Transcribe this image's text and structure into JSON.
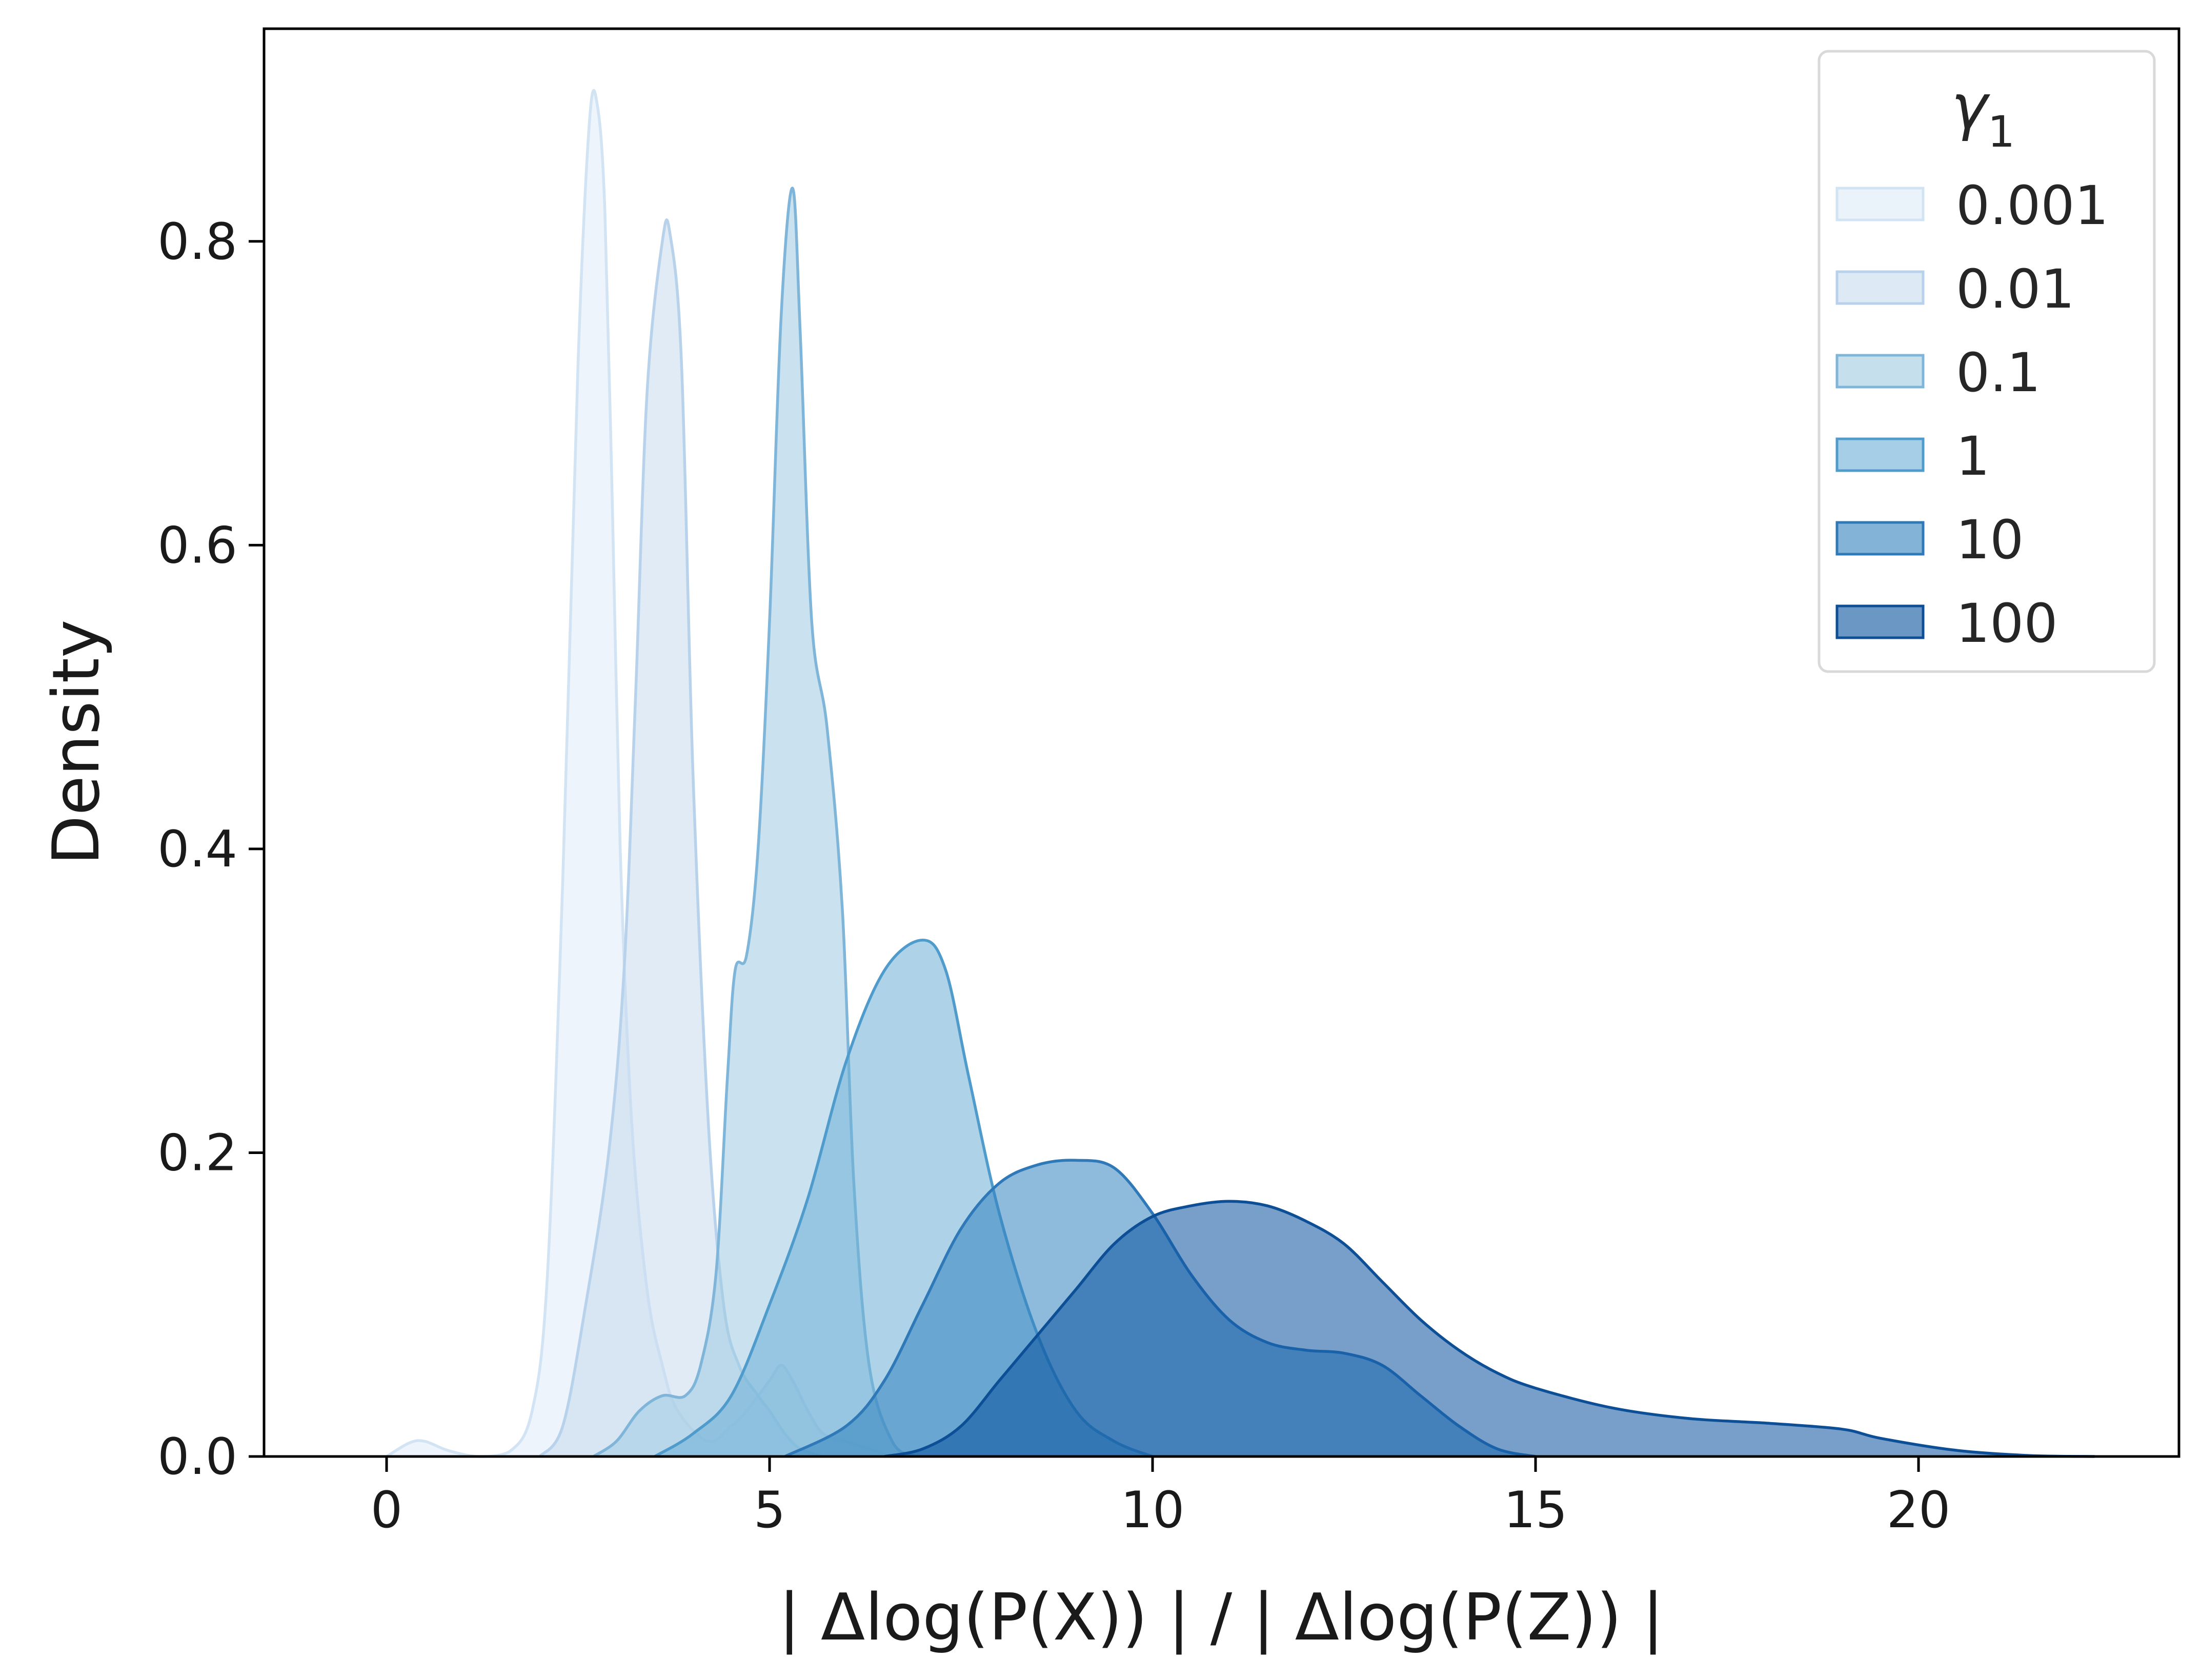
{
  "chart_data": {
    "type": "area",
    "xlabel": "| Δlog(P(X)) | / | Δlog(P(Z)) |",
    "ylabel": "Density",
    "xlim": [
      -1.6,
      23.4
    ],
    "ylim": [
      0,
      0.94
    ],
    "xticks": [
      0,
      5,
      10,
      15,
      20
    ],
    "xtick_labels": [
      "0",
      "5",
      "10",
      "15",
      "20"
    ],
    "yticks": [
      0.0,
      0.2,
      0.4,
      0.6,
      0.8
    ],
    "ytick_labels": [
      "0.0",
      "0.2",
      "0.4",
      "0.6",
      "0.8"
    ],
    "grid": false,
    "legend": {
      "title_symbol": "γ",
      "title_subscript": "1",
      "placement": "top-right"
    },
    "series": [
      {
        "name": "0.001",
        "fill": "#deebf7",
        "stroke": "#d2e3f3",
        "points": [
          [
            0,
            0
          ],
          [
            0.3,
            0.009
          ],
          [
            0.5,
            0.01
          ],
          [
            0.8,
            0.004
          ],
          [
            1.2,
            0.0
          ],
          [
            1.6,
            0.003
          ],
          [
            1.9,
            0.03
          ],
          [
            2.1,
            0.12
          ],
          [
            2.3,
            0.38
          ],
          [
            2.5,
            0.72
          ],
          [
            2.65,
            0.88
          ],
          [
            2.75,
            0.89
          ],
          [
            2.85,
            0.82
          ],
          [
            2.95,
            0.62
          ],
          [
            3.05,
            0.4
          ],
          [
            3.2,
            0.22
          ],
          [
            3.4,
            0.11
          ],
          [
            3.6,
            0.06
          ],
          [
            3.8,
            0.03
          ],
          [
            4.2,
            0.01
          ],
          [
            4.5,
            0.02
          ],
          [
            4.7,
            0.03
          ],
          [
            5.0,
            0.05
          ],
          [
            5.15,
            0.06
          ],
          [
            5.3,
            0.05
          ],
          [
            5.5,
            0.03
          ],
          [
            5.7,
            0.015
          ],
          [
            6.0,
            0.01
          ],
          [
            6.3,
            0.005
          ],
          [
            6.6,
            0.0
          ]
        ]
      },
      {
        "name": "0.01",
        "fill": "#c6dbef",
        "stroke": "#b7d2ea",
        "points": [
          [
            2.0,
            0
          ],
          [
            2.3,
            0.02
          ],
          [
            2.6,
            0.1
          ],
          [
            2.9,
            0.2
          ],
          [
            3.1,
            0.32
          ],
          [
            3.25,
            0.5
          ],
          [
            3.4,
            0.7
          ],
          [
            3.6,
            0.8
          ],
          [
            3.7,
            0.805
          ],
          [
            3.85,
            0.72
          ],
          [
            4.0,
            0.45
          ],
          [
            4.2,
            0.22
          ],
          [
            4.4,
            0.1
          ],
          [
            4.6,
            0.06
          ],
          [
            4.85,
            0.04
          ],
          [
            5.0,
            0.03
          ],
          [
            5.2,
            0.015
          ],
          [
            5.4,
            0.005
          ],
          [
            5.7,
            0.0
          ]
        ]
      },
      {
        "name": "0.1",
        "fill": "#9ecae1",
        "stroke": "#7fb5d8",
        "points": [
          [
            2.7,
            0
          ],
          [
            3.0,
            0.01
          ],
          [
            3.3,
            0.03
          ],
          [
            3.6,
            0.04
          ],
          [
            3.9,
            0.04
          ],
          [
            4.1,
            0.06
          ],
          [
            4.3,
            0.12
          ],
          [
            4.45,
            0.25
          ],
          [
            4.55,
            0.32
          ],
          [
            4.7,
            0.33
          ],
          [
            4.85,
            0.4
          ],
          [
            5.0,
            0.55
          ],
          [
            5.15,
            0.75
          ],
          [
            5.3,
            0.835
          ],
          [
            5.4,
            0.74
          ],
          [
            5.55,
            0.55
          ],
          [
            5.75,
            0.48
          ],
          [
            5.95,
            0.36
          ],
          [
            6.1,
            0.18
          ],
          [
            6.3,
            0.06
          ],
          [
            6.6,
            0.01
          ],
          [
            6.9,
            0.0
          ]
        ]
      },
      {
        "name": "1",
        "fill": "#6baed6",
        "stroke": "#4f9bcc",
        "points": [
          [
            3.5,
            0
          ],
          [
            4.0,
            0.015
          ],
          [
            4.5,
            0.04
          ],
          [
            5.0,
            0.1
          ],
          [
            5.5,
            0.17
          ],
          [
            6.0,
            0.26
          ],
          [
            6.5,
            0.32
          ],
          [
            7.0,
            0.34
          ],
          [
            7.3,
            0.32
          ],
          [
            7.6,
            0.25
          ],
          [
            8.0,
            0.16
          ],
          [
            8.5,
            0.08
          ],
          [
            9.0,
            0.03
          ],
          [
            9.5,
            0.01
          ],
          [
            10.0,
            0.0
          ]
        ]
      },
      {
        "name": "10",
        "fill": "#3182bd",
        "stroke": "#2f79b8",
        "points": [
          [
            5.2,
            0
          ],
          [
            6.0,
            0.02
          ],
          [
            6.5,
            0.05
          ],
          [
            7.0,
            0.1
          ],
          [
            7.5,
            0.15
          ],
          [
            8.0,
            0.18
          ],
          [
            8.5,
            0.192
          ],
          [
            9.0,
            0.195
          ],
          [
            9.5,
            0.19
          ],
          [
            10.0,
            0.16
          ],
          [
            10.5,
            0.12
          ],
          [
            11.0,
            0.09
          ],
          [
            11.5,
            0.075
          ],
          [
            12.0,
            0.07
          ],
          [
            12.5,
            0.068
          ],
          [
            13.0,
            0.06
          ],
          [
            13.5,
            0.04
          ],
          [
            14.0,
            0.02
          ],
          [
            14.5,
            0.005
          ],
          [
            15.0,
            0.0
          ]
        ]
      },
      {
        "name": "100",
        "fill": "#08519c",
        "stroke": "#0d4f96",
        "points": [
          [
            6.5,
            0
          ],
          [
            7.0,
            0.005
          ],
          [
            7.5,
            0.02
          ],
          [
            8.0,
            0.05
          ],
          [
            8.5,
            0.08
          ],
          [
            9.0,
            0.11
          ],
          [
            9.5,
            0.14
          ],
          [
            10.0,
            0.158
          ],
          [
            10.5,
            0.165
          ],
          [
            11.0,
            0.168
          ],
          [
            11.5,
            0.165
          ],
          [
            12.0,
            0.155
          ],
          [
            12.5,
            0.14
          ],
          [
            13.0,
            0.115
          ],
          [
            13.5,
            0.09
          ],
          [
            14.0,
            0.07
          ],
          [
            14.5,
            0.055
          ],
          [
            15.0,
            0.045
          ],
          [
            16.0,
            0.032
          ],
          [
            17.0,
            0.025
          ],
          [
            18.0,
            0.022
          ],
          [
            19.0,
            0.018
          ],
          [
            19.5,
            0.012
          ],
          [
            20.5,
            0.004
          ],
          [
            21.5,
            0.0005
          ],
          [
            22.3,
            0.0
          ]
        ]
      }
    ]
  }
}
